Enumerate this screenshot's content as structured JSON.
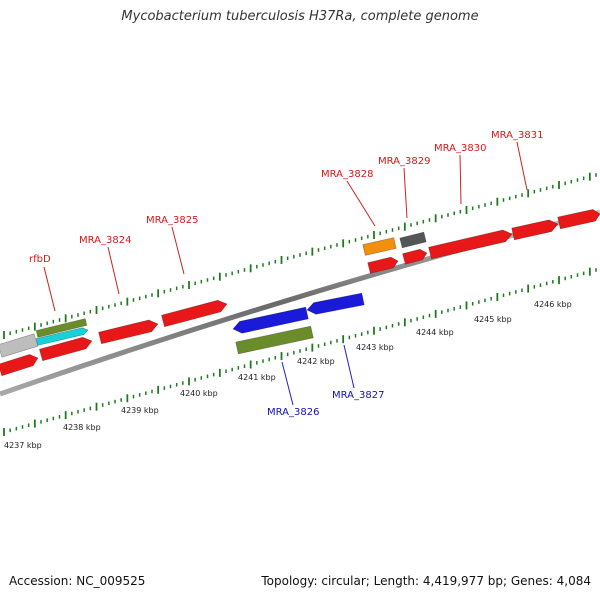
{
  "title": "Mycobacterium tuberculosis H37Ra, complete genome",
  "footer": {
    "accession": "Accession: NC_009525",
    "summary": "Topology: circular; Length: 4,419,977 bp; Genes: 4,084"
  },
  "colors": {
    "red": "#e81818",
    "blue": "#1a1ad8",
    "olive": "#6b8c2a",
    "orange": "#f0900c",
    "dark_gray": "#555555",
    "light_gray": "#bdbdbd",
    "cyan": "#18d0d8",
    "tick_green": "#1f7a1f",
    "backbone": "#7a7a7a",
    "plus_label": "#d81818",
    "minus_label": "#1010c0"
  },
  "axis_labels": [
    "4237 kbp",
    "4238 kbp",
    "4239 kbp",
    "4240 kbp",
    "4241 kbp",
    "4242 kbp",
    "4243 kbp",
    "4244 kbp",
    "4245 kbp",
    "4246 kbp"
  ],
  "gene_labels_plus": [
    "rfbD",
    "MRA_3824",
    "MRA_3825",
    "MRA_3828",
    "MRA_3829",
    "MRA_3830",
    "MRA_3831"
  ],
  "gene_labels_minus": [
    "MRA_3826",
    "MRA_3827"
  ]
}
